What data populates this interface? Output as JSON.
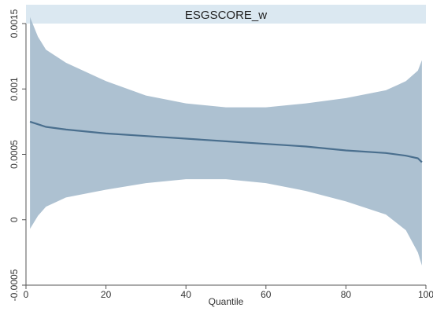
{
  "chart_data": {
    "type": "area",
    "title": "ESGSCORE_w",
    "xlabel": "Quantile",
    "ylabel": "",
    "xlim": [
      0,
      100
    ],
    "ylim": [
      -0.0005,
      0.0015
    ],
    "xticks": [
      0,
      20,
      40,
      60,
      80,
      100
    ],
    "xtick_labels": [
      "0",
      "20",
      "40",
      "60",
      "80",
      "100"
    ],
    "yticks": [
      -0.0005,
      0,
      0.0005,
      0.001,
      0.0015
    ],
    "ytick_labels": [
      "-0.0005",
      "0",
      "0.0005",
      "0.001",
      "0.0015"
    ],
    "grid": false,
    "legend": "none",
    "x": [
      1,
      3,
      5,
      10,
      20,
      30,
      40,
      50,
      60,
      70,
      80,
      90,
      95,
      98,
      99
    ],
    "series": [
      {
        "role": "estimate",
        "values": [
          0.00075,
          0.00073,
          0.00071,
          0.00069,
          0.00066,
          0.00064,
          0.00062,
          0.0006,
          0.00058,
          0.00056,
          0.00053,
          0.00051,
          0.00049,
          0.00047,
          0.00044
        ]
      },
      {
        "role": "upper",
        "values": [
          0.00155,
          0.0014,
          0.0013,
          0.0012,
          0.00106,
          0.00095,
          0.00089,
          0.00086,
          0.00086,
          0.00089,
          0.00093,
          0.00099,
          0.00106,
          0.00114,
          0.00122
        ]
      },
      {
        "role": "lower",
        "values": [
          -7e-05,
          3e-05,
          0.0001,
          0.00017,
          0.00023,
          0.00028,
          0.00031,
          0.00031,
          0.00028,
          0.00022,
          0.00014,
          4e-05,
          -8e-05,
          -0.00025,
          -0.00035
        ]
      }
    ],
    "colors": {
      "band": "#9fb6c9",
      "line": "#4a6f8e",
      "title_bar": "#dbe8f1",
      "axis": "#555555"
    }
  }
}
